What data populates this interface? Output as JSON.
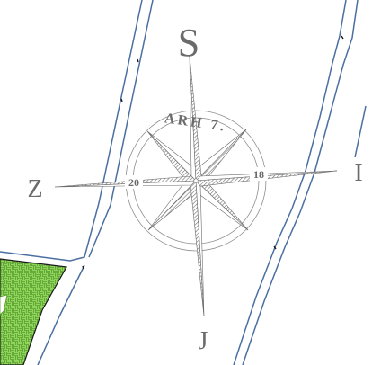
{
  "map": {
    "compass": {
      "north": "S",
      "south": "J",
      "east": "I",
      "west": "Z",
      "ring_text": "ARH 7.",
      "east_number": "18",
      "west_number": "20"
    },
    "colors": {
      "plot_line": "#4a6fa0",
      "green_area": "#7fd04c",
      "green_hatch": "#5c9c30",
      "compass_gray": "#8c8c8c"
    }
  }
}
